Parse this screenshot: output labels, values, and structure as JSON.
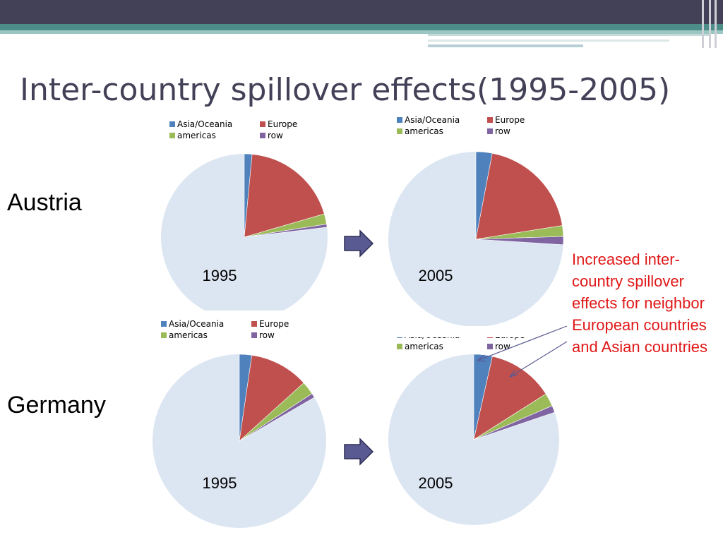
{
  "title": "Inter-country spillover effects(1995-2005)",
  "rows": [
    {
      "country": "Austria"
    },
    {
      "country": "Germany"
    }
  ],
  "note": "Increased inter-country spillover effects for neighbor European countries and Asian countries",
  "colors": {
    "Asia/Oceania": "#4f81bd",
    "Europe": "#c0504d",
    "americas": "#9bbb59",
    "row": "#8064a2",
    "rest": "#dce6f2",
    "arrow": "#4a4a84"
  },
  "chart_data": [
    {
      "type": "pie",
      "label": "1995",
      "legend": [
        "Asia/Oceania",
        "Europe",
        "americas",
        "row"
      ],
      "values": {
        "Asia/Oceania": 1.5,
        "Europe": 19,
        "americas": 2,
        "row": 0.6
      }
    },
    {
      "type": "pie",
      "label": "2005",
      "legend": [
        "Asia/Oceania",
        "Europe",
        "americas",
        "row"
      ],
      "values": {
        "Asia/Oceania": 3,
        "Europe": 19.5,
        "americas": 2,
        "row": 1.5
      }
    },
    {
      "type": "pie",
      "label": "1995",
      "legend": [
        "Asia/Oceania",
        "Europe",
        "americas",
        "row"
      ],
      "values": {
        "Asia/Oceania": 2.3,
        "Europe": 11,
        "americas": 2.5,
        "row": 0.8
      }
    },
    {
      "type": "pie",
      "label": "2005",
      "legend": [
        "Asia/Oceania",
        "Europe",
        "americas",
        "row"
      ],
      "values": {
        "Asia/Oceania": 3.5,
        "Europe": 12.5,
        "americas": 2.5,
        "row": 1.3
      }
    }
  ]
}
